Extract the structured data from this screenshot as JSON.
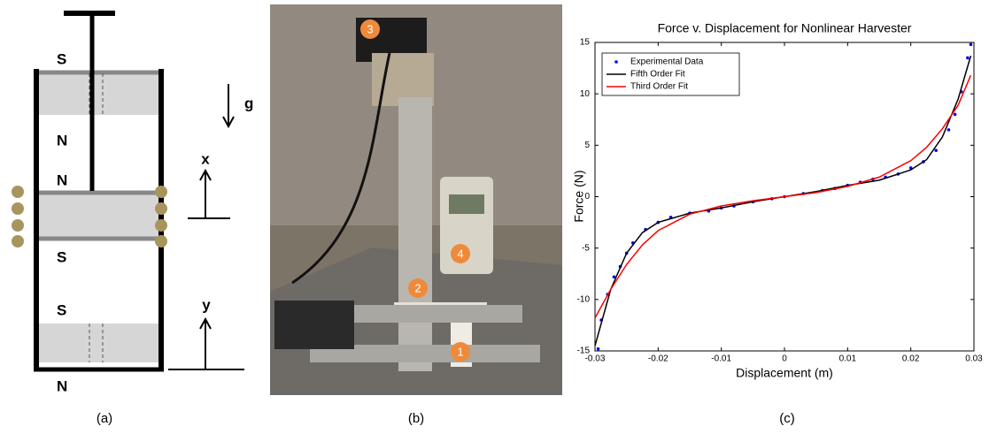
{
  "diagram": {
    "pole_labels": [
      "S",
      "N",
      "N",
      "S",
      "S",
      "N"
    ],
    "gravity_label": "g",
    "x_label": "x",
    "y_label": "y",
    "caption": "(a)"
  },
  "photo": {
    "markers": [
      "1",
      "2",
      "3",
      "4"
    ],
    "caption": "(b)"
  },
  "chart_data": {
    "type": "line",
    "title": "Force v. Displacement for Nonlinear Harvester",
    "x_label": "Displacement (m)",
    "y_label": "Force (N)",
    "xlim": [
      -0.03,
      0.03
    ],
    "xticks": [
      -0.03,
      -0.02,
      -0.01,
      0,
      0.01,
      0.02,
      0.03
    ],
    "ylim": [
      -15,
      15
    ],
    "yticks": [
      -15,
      -10,
      -5,
      0,
      5,
      10,
      15
    ],
    "legend": "upper left",
    "series": [
      {
        "name": "Experimental Data",
        "color": "#0000ff",
        "style": "markers",
        "x": [
          -0.0295,
          -0.029,
          -0.028,
          -0.027,
          -0.026,
          -0.025,
          -0.024,
          -0.022,
          -0.02,
          -0.018,
          -0.015,
          -0.012,
          -0.01,
          -0.008,
          -0.005,
          -0.002,
          0,
          0.003,
          0.006,
          0.008,
          0.01,
          0.012,
          0.014,
          0.016,
          0.018,
          0.02,
          0.022,
          0.024,
          0.026,
          0.027,
          0.028,
          0.029,
          0.0295
        ],
        "values": [
          -14.8,
          -12,
          -9.5,
          -7.8,
          -6.8,
          -5.5,
          -4.5,
          -3.2,
          -2.5,
          -2.0,
          -1.6,
          -1.4,
          -1.1,
          -0.9,
          -0.5,
          -0.2,
          0,
          0.3,
          0.6,
          0.8,
          1.1,
          1.4,
          1.7,
          1.9,
          2.2,
          2.8,
          3.4,
          4.5,
          6.5,
          8,
          10.2,
          13.5,
          14.8
        ]
      },
      {
        "name": "Fifth Order Fit",
        "color": "#000000",
        "style": "line",
        "x": [
          -0.03,
          -0.0275,
          -0.025,
          -0.0225,
          -0.02,
          -0.015,
          -0.01,
          -0.005,
          0,
          0.005,
          0.01,
          0.015,
          0.02,
          0.0225,
          0.025,
          0.0275,
          0.0295
        ],
        "values": [
          -14.5,
          -9.0,
          -5.5,
          -3.5,
          -2.5,
          -1.6,
          -1.1,
          -0.5,
          0,
          0.5,
          1.1,
          1.6,
          2.6,
          3.6,
          5.8,
          9.5,
          13.7
        ]
      },
      {
        "name": "Third Order Fit",
        "color": "#ff0000",
        "style": "line",
        "x": [
          -0.03,
          -0.0275,
          -0.025,
          -0.0225,
          -0.02,
          -0.015,
          -0.01,
          -0.005,
          0,
          0.005,
          0.01,
          0.015,
          0.02,
          0.0225,
          0.025,
          0.0275,
          0.0295
        ],
        "values": [
          -11.8,
          -9.0,
          -6.6,
          -4.7,
          -3.3,
          -1.7,
          -0.9,
          -0.4,
          0,
          0.4,
          1.0,
          1.9,
          3.5,
          4.8,
          6.6,
          8.9,
          11.8
        ]
      }
    ]
  },
  "chart_caption": "(c)"
}
